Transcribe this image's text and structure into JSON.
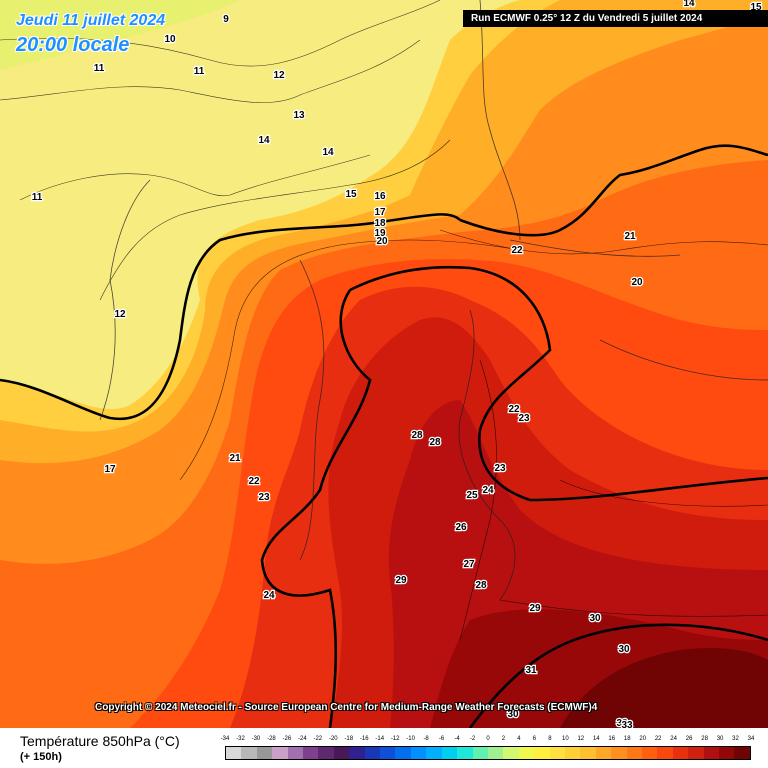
{
  "header": {
    "date": "Jeudi 11 juillet 2024",
    "local_time": "20:00 locale",
    "run": "Run ECMWF 0.25° 12 Z du Vendredi 5 juillet 2024"
  },
  "copyright": "Copyright © 2024 Meteociel.fr - Source European Centre for Medium-Range Weather Forecasts (ECMWF)4",
  "footer": {
    "title": "Température 850hPa (°C)",
    "lead_time": "(+ 150h)"
  },
  "scale": {
    "ticks": [
      "-34",
      "-32",
      "-30",
      "-28",
      "-26",
      "-24",
      "-22",
      "-20",
      "-18",
      "-16",
      "-14",
      "-12",
      "-10",
      "-8",
      "-6",
      "-4",
      "-2",
      "0",
      "2",
      "4",
      "6",
      "8",
      "10",
      "12",
      "14",
      "16",
      "18",
      "20",
      "22",
      "24",
      "26",
      "28",
      "30",
      "32",
      "34"
    ],
    "colors": [
      "#d8d8d8",
      "#b8b8b8",
      "#989898",
      "#c8a0c8",
      "#a070b0",
      "#804090",
      "#602870",
      "#481858",
      "#302090",
      "#1838b8",
      "#1050d8",
      "#0070f0",
      "#0090ff",
      "#00b0ff",
      "#00d0f0",
      "#20e8d8",
      "#60f0b0",
      "#a0f090",
      "#d0f870",
      "#f0f850",
      "#fff040",
      "#ffe040",
      "#ffd038",
      "#ffc030",
      "#ffa828",
      "#ff9020",
      "#ff7818",
      "#ff6010",
      "#f84810",
      "#e83010",
      "#d02010",
      "#b01010",
      "#900808",
      "#700404"
    ]
  },
  "isotherm_labels": [
    "9",
    "10",
    "11",
    "11",
    "12",
    "13",
    "14",
    "14",
    "11",
    "15",
    "16",
    "17",
    "18",
    "19",
    "20",
    "22",
    "21",
    "20",
    "12",
    "17",
    "21",
    "22",
    "23",
    "28",
    "28",
    "22",
    "23",
    "23",
    "24",
    "25",
    "26",
    "27",
    "28",
    "29",
    "29",
    "24",
    "30",
    "30",
    "31",
    "30",
    "33",
    "33",
    "14",
    "15"
  ]
}
